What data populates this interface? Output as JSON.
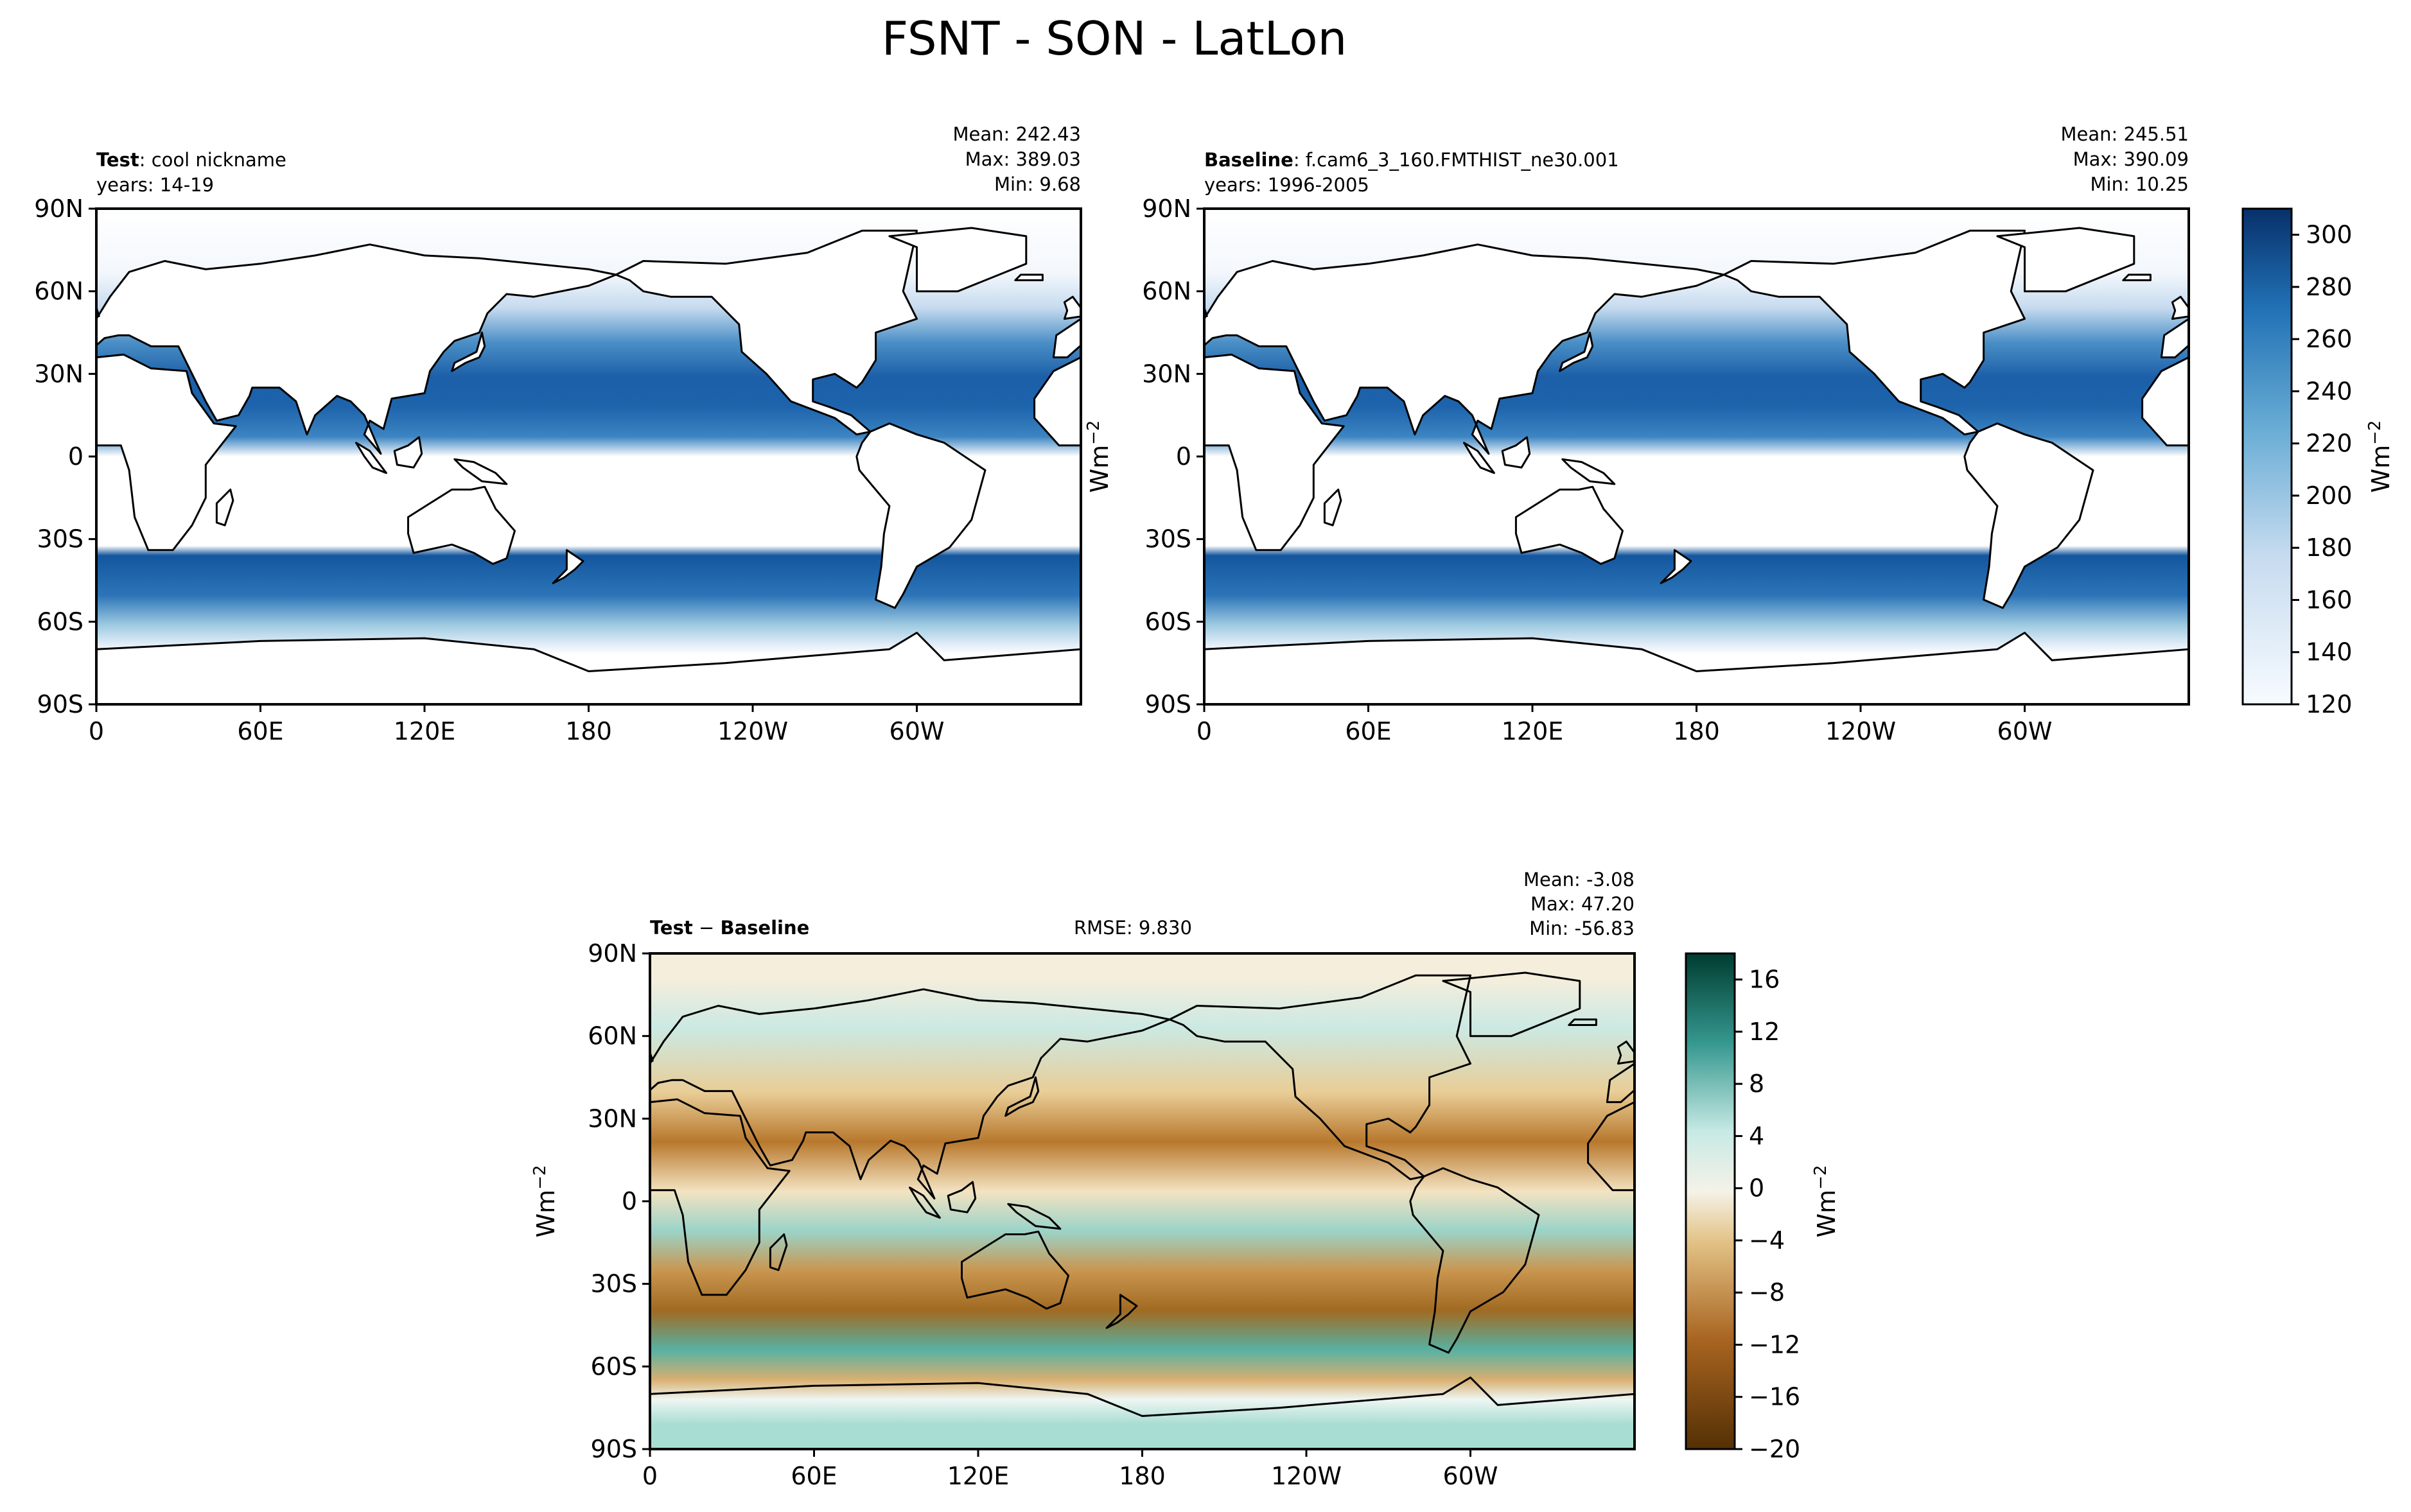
{
  "figure": {
    "title": "FSNT - SON - LatLon"
  },
  "panels": [
    {
      "id": "test",
      "label_bold": "Test",
      "label_rest": ": cool nickname",
      "years": "years: 14-19",
      "stats": [
        "Mean: 242.43",
        "Max: 389.03",
        "Min:  9.68"
      ],
      "colorscale": "blues"
    },
    {
      "id": "baseline",
      "label_bold": "Baseline",
      "label_rest": ": f.cam6_3_160.FMTHIST_ne30.001",
      "years": "years: 1996-2005",
      "stats": [
        "Mean: 245.51",
        "Max: 390.09",
        "Min: 10.25"
      ],
      "colorscale": "blues",
      "units_left": "Wm$^{-2}$"
    },
    {
      "id": "diff",
      "label_parts": [
        "Test",
        " − ",
        "Baseline"
      ],
      "rmse": "RMSE: 9.830",
      "stats": [
        "Mean: -3.08",
        "Max: 47.20",
        "Min: -56.83"
      ],
      "colorscale": "brbg",
      "units_left": "Wm$^{-2}$"
    }
  ],
  "axes": {
    "lat_ticks": [
      "90N",
      "60N",
      "30N",
      "0",
      "30S",
      "60S",
      "90S"
    ],
    "lon_ticks": [
      "0",
      "60E",
      "120E",
      "180",
      "120W",
      "60W"
    ]
  },
  "colorbars": {
    "main": {
      "ticks": [
        "120",
        "140",
        "160",
        "180",
        "200",
        "220",
        "240",
        "260",
        "280",
        "300"
      ],
      "range": [
        120,
        310
      ],
      "units": "Wm^-2"
    },
    "diff": {
      "ticks": [
        "−20",
        "−16",
        "−12",
        "−8",
        "−4",
        "0",
        "4",
        "8",
        "12",
        "16"
      ],
      "range": [
        -20,
        18
      ],
      "units": "Wm^-2"
    }
  },
  "chart_data": [
    {
      "type": "heatmap",
      "title": "Test: cool nickname",
      "variable": "FSNT",
      "season": "SON",
      "x_ticks": [
        "0",
        "60E",
        "120E",
        "180",
        "120W",
        "60W"
      ],
      "y_ticks": [
        "90N",
        "60N",
        "30N",
        "0",
        "30S",
        "60S",
        "90S"
      ],
      "colorbar_range": [
        120,
        310
      ],
      "colormap": "blues",
      "mean": 242.43,
      "max": 389.03,
      "min": 9.68
    },
    {
      "type": "heatmap",
      "title": "Baseline: f.cam6_3_160.FMTHIST_ne30.001",
      "variable": "FSNT",
      "season": "SON",
      "x_ticks": [
        "0",
        "60E",
        "120E",
        "180",
        "120W",
        "60W"
      ],
      "y_ticks": [
        "90N",
        "60N",
        "30N",
        "0",
        "30S",
        "60S",
        "90S"
      ],
      "colorbar_range": [
        120,
        310
      ],
      "colormap": "blues",
      "mean": 245.51,
      "max": 390.09,
      "min": 10.25
    },
    {
      "type": "heatmap",
      "title": "Test − Baseline",
      "variable": "FSNT",
      "season": "SON",
      "x_ticks": [
        "0",
        "60E",
        "120E",
        "180",
        "120W",
        "60W"
      ],
      "y_ticks": [
        "90N",
        "60N",
        "30N",
        "0",
        "30S",
        "60S",
        "90S"
      ],
      "colorbar_range": [
        -20,
        18
      ],
      "colormap": "brown-blue-green",
      "mean": -3.08,
      "max": 47.2,
      "min": -56.83,
      "rmse": 9.83
    }
  ]
}
